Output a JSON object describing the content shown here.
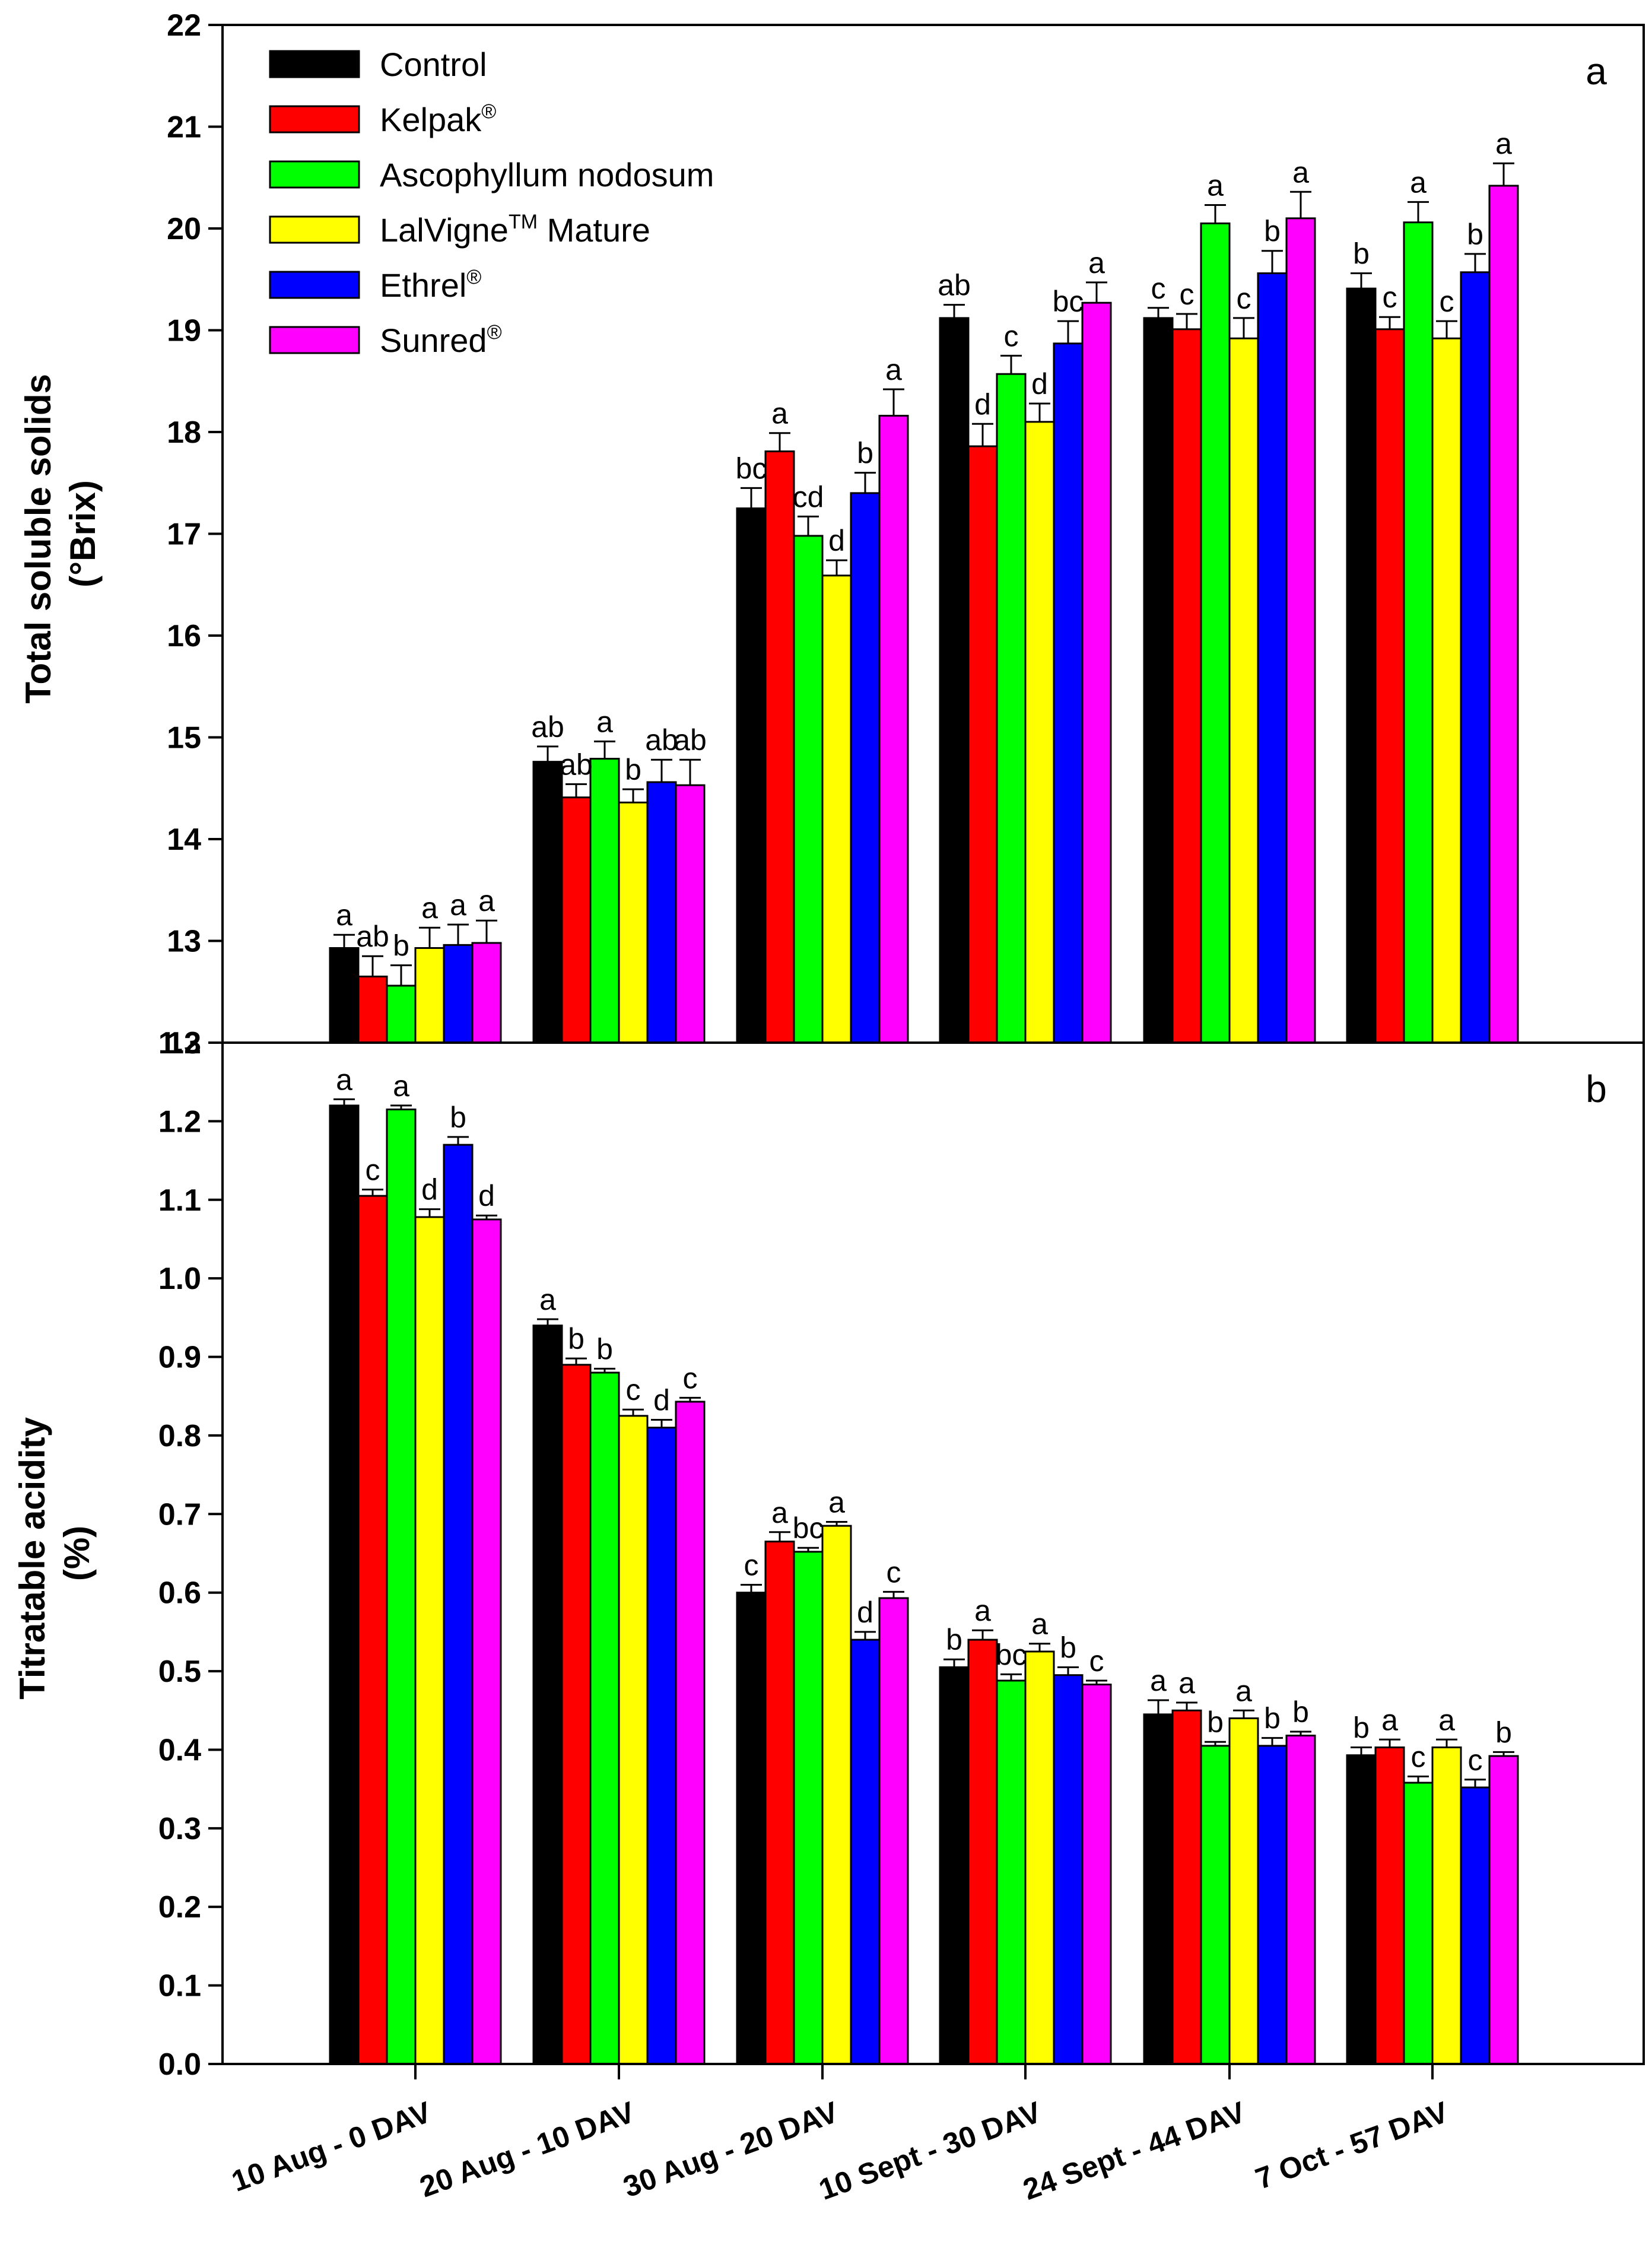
{
  "chart_data": [
    {
      "type": "bar",
      "panel_label": "a",
      "ylabel": "Total soluble solids",
      "ylabel_unit": "(°Brix)",
      "ylim": [
        12,
        22
      ],
      "yticks": [
        "12",
        "13",
        "14",
        "15",
        "16",
        "17",
        "18",
        "19",
        "20",
        "21",
        "22"
      ],
      "categories": [
        "10 Aug - 0 DAV",
        "20 Aug - 10 DAV",
        "30 Aug - 20 DAV",
        "10 Sept - 30 DAV",
        "24 Sept - 44 DAV",
        "7 Oct - 57 DAV"
      ],
      "legend_position": "top-left",
      "series": [
        {
          "name": "Control",
          "color": "#000000",
          "values": [
            12.93,
            14.76,
            17.25,
            19.12,
            19.12,
            19.41
          ],
          "errors": [
            0.13,
            0.15,
            0.2,
            0.13,
            0.1,
            0.15
          ],
          "letters": [
            "a",
            "ab",
            "bc",
            "ab",
            "c",
            "b"
          ]
        },
        {
          "name": "Kelpak®",
          "name_base": "Kelpak",
          "name_sup": "®",
          "color": "#ff0000",
          "values": [
            12.65,
            14.41,
            17.81,
            17.86,
            19.01,
            19.01
          ],
          "errors": [
            0.2,
            0.13,
            0.18,
            0.22,
            0.15,
            0.12
          ],
          "letters": [
            "ab",
            "ab",
            "a",
            "d",
            "c",
            "c"
          ]
        },
        {
          "name": "Ascophyllum nodosum",
          "name_base": "Ascophyllum nodosum",
          "name_sup": "",
          "color": "#00ff00",
          "values": [
            12.56,
            14.79,
            16.98,
            18.57,
            20.05,
            20.06
          ],
          "errors": [
            0.2,
            0.17,
            0.19,
            0.18,
            0.18,
            0.2
          ],
          "letters": [
            "b",
            "a",
            "cd",
            "c",
            "a",
            "a"
          ]
        },
        {
          "name": "LalVigne™ Mature",
          "name_base": "LalVigne",
          "name_sup": "TM",
          "name_rest": " Mature",
          "color": "#ffff00",
          "values": [
            12.93,
            14.36,
            16.59,
            18.1,
            18.92,
            18.92
          ],
          "errors": [
            0.2,
            0.13,
            0.15,
            0.18,
            0.2,
            0.17
          ],
          "letters": [
            "a",
            "b",
            "d",
            "d",
            "c",
            "c"
          ]
        },
        {
          "name": "Ethrel®",
          "name_base": "Ethrel",
          "name_sup": "®",
          "color": "#0000ff",
          "values": [
            12.96,
            14.56,
            17.4,
            18.87,
            19.56,
            19.57
          ],
          "errors": [
            0.2,
            0.22,
            0.2,
            0.22,
            0.22,
            0.18
          ],
          "letters": [
            "a",
            "ab",
            "b",
            "bc",
            "b",
            "b"
          ]
        },
        {
          "name": "Sunred®",
          "name_base": "Sunred",
          "name_sup": "®",
          "color": "#ff00ff",
          "values": [
            12.98,
            14.53,
            18.16,
            19.27,
            20.1,
            20.42
          ],
          "errors": [
            0.22,
            0.25,
            0.26,
            0.2,
            0.26,
            0.22
          ],
          "letters": [
            "a",
            "ab",
            "a",
            "a",
            "a",
            "a"
          ]
        }
      ]
    },
    {
      "type": "bar",
      "panel_label": "b",
      "ylabel": "Titratable acidity",
      "ylabel_unit": "(%)",
      "ylim": [
        0,
        1.3
      ],
      "yticks": [
        "0.0",
        "0.1",
        "0.2",
        "0.3",
        "0.4",
        "0.5",
        "0.6",
        "0.7",
        "0.8",
        "0.9",
        "1.0",
        "1.1",
        "1.2",
        "1.3"
      ],
      "categories": [
        "10 Aug - 0 DAV",
        "20 Aug - 10 DAV",
        "30 Aug - 20 DAV",
        "10 Sept - 30 DAV",
        "24 Sept - 44 DAV",
        "7 Oct - 57 DAV"
      ],
      "series": [
        {
          "name": "Control",
          "color": "#000000",
          "values": [
            1.22,
            0.94,
            0.6,
            0.505,
            0.445,
            0.393
          ],
          "errors": [
            0.008,
            0.008,
            0.01,
            0.01,
            0.018,
            0.01
          ],
          "letters": [
            "a",
            "a",
            "c",
            "b",
            "a",
            "b"
          ]
        },
        {
          "name": "Kelpak®",
          "color": "#ff0000",
          "values": [
            1.105,
            0.89,
            0.665,
            0.54,
            0.45,
            0.403
          ],
          "errors": [
            0.008,
            0.008,
            0.012,
            0.012,
            0.01,
            0.01
          ],
          "letters": [
            "c",
            "b",
            "a",
            "a",
            "a",
            "a"
          ]
        },
        {
          "name": "Ascophyllum nodosum",
          "color": "#00ff00",
          "values": [
            1.215,
            0.88,
            0.652,
            0.488,
            0.405,
            0.358
          ],
          "errors": [
            0.005,
            0.005,
            0.005,
            0.008,
            0.005,
            0.008
          ],
          "letters": [
            "a",
            "b",
            "bc",
            "bc",
            "b",
            "c"
          ]
        },
        {
          "name": "LalVigne™ Mature",
          "color": "#ffff00",
          "values": [
            1.078,
            0.825,
            0.685,
            0.525,
            0.44,
            0.403
          ],
          "errors": [
            0.01,
            0.008,
            0.005,
            0.01,
            0.01,
            0.01
          ],
          "letters": [
            "d",
            "c",
            "a",
            "a",
            "a",
            "a"
          ]
        },
        {
          "name": "Ethrel®",
          "color": "#0000ff",
          "values": [
            1.17,
            0.81,
            0.54,
            0.495,
            0.405,
            0.352
          ],
          "errors": [
            0.01,
            0.01,
            0.01,
            0.01,
            0.01,
            0.01
          ],
          "letters": [
            "b",
            "d",
            "d",
            "b",
            "b",
            "c"
          ]
        },
        {
          "name": "Sunred®",
          "color": "#ff00ff",
          "values": [
            1.075,
            0.843,
            0.593,
            0.483,
            0.418,
            0.392
          ],
          "errors": [
            0.005,
            0.005,
            0.008,
            0.005,
            0.005,
            0.005
          ],
          "letters": [
            "d",
            "c",
            "c",
            "c",
            "b",
            "b"
          ]
        }
      ]
    }
  ]
}
